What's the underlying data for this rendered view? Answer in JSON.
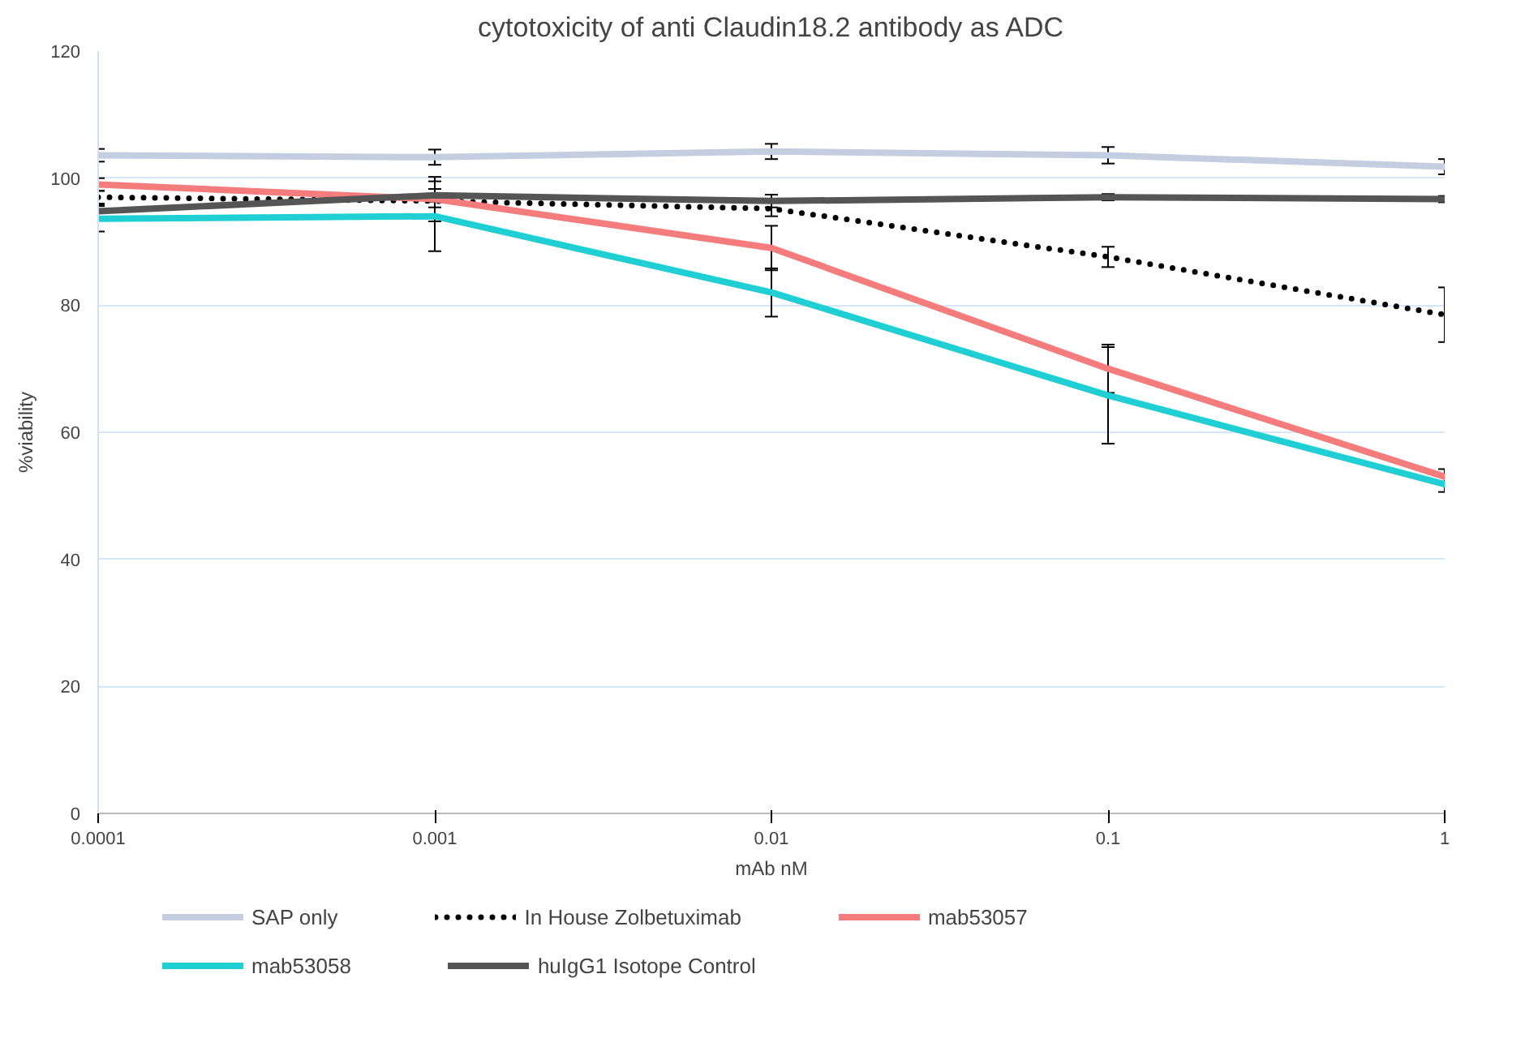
{
  "chart_data": {
    "type": "line",
    "title": "cytotoxicity of anti Claudin18.2 antibody as ADC",
    "xlabel": "mAb nM",
    "ylabel": "%viability",
    "x": [
      0.0001,
      0.001,
      0.01,
      0.1,
      1
    ],
    "log": "x",
    "xlim": [
      0.0001,
      1
    ],
    "xticks": [
      {
        "value": 0.0001,
        "label": "0.0001"
      },
      {
        "value": 0.001,
        "label": "0.001"
      },
      {
        "value": 0.01,
        "label": "0.01"
      },
      {
        "value": 0.1,
        "label": "0.1"
      },
      {
        "value": 1,
        "label": "1"
      }
    ],
    "ylim": [
      0,
      120
    ],
    "yticks": [
      0,
      20,
      40,
      60,
      80,
      100,
      120
    ],
    "grid": "y",
    "legend": "bottom",
    "series": [
      {
        "name": "SAP only",
        "color": "#c5cde0",
        "values": [
          103.6,
          103.3,
          104.2,
          103.6,
          101.8
        ],
        "errors": [
          1,
          1.2,
          1.2,
          1.3,
          1.2
        ]
      },
      {
        "name": "In House Zolbetuximab",
        "color": "#000000",
        "line_style": "dotted",
        "values": [
          97,
          96.4,
          95.2,
          87.6,
          78.5
        ],
        "errors": [
          1,
          1,
          1.2,
          1.6,
          4.3
        ]
      },
      {
        "name": "mab53057",
        "color": "#f47c7c",
        "values": [
          99,
          96.7,
          89,
          70,
          53
        ],
        "errors": [
          1,
          3.5,
          3.5,
          3.8,
          1.2
        ]
      },
      {
        "name": "mab53058",
        "color": "#1fcfd3",
        "values": [
          93.6,
          94,
          82,
          65.8,
          51.8
        ],
        "errors": [
          2,
          5.5,
          3.8,
          7.6,
          1.2
        ]
      },
      {
        "name": "huIgG1 Isotope Control",
        "color": "#555555",
        "values": [
          94.8,
          97.3,
          96.4,
          97,
          96.7
        ],
        "errors": [
          1,
          1,
          1,
          0.5,
          0.5
        ]
      }
    ]
  }
}
